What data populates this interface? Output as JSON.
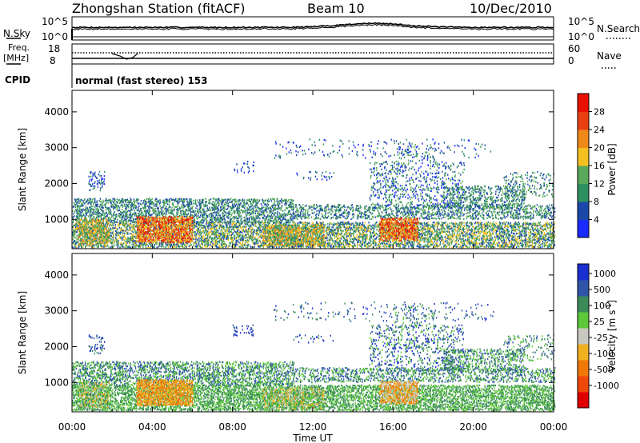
{
  "header": {
    "station": "Zhongshan Station (fitACF)",
    "beam": "Beam 10",
    "date": "10/Dec/2010"
  },
  "nsky_panel": {
    "left_label": "N.Sky",
    "right_label": "N.Search",
    "tick_top": "10^5",
    "tick_bottom": "10^0",
    "right_tick_top": "10^5",
    "right_tick_bottom": "10^0"
  },
  "freq_panel": {
    "left_label_1": "Freq.",
    "left_label_2": "[MHz]",
    "tick_top": "18",
    "tick_bottom": "8",
    "right_label": "Nave",
    "right_tick_top": "60",
    "right_tick_bottom": "0"
  },
  "cpid_panel": {
    "left_label": "CPID",
    "text": "normal (fast stereo) 153"
  },
  "colors": {
    "power": [
      "#1a2bff",
      "#1b48a8",
      "#2e8f60",
      "#5aa85a",
      "#f4c020",
      "#f08818",
      "#e84010",
      "#e81000"
    ],
    "velocity": [
      "#1a2fd0",
      "#2e55a8",
      "#3b8a5a",
      "#5cc83a",
      "#c8c8c0",
      "#f0b020",
      "#f07808",
      "#f04808",
      "#e00000"
    ]
  },
  "chart_data": [
    {
      "type": "heatmap",
      "name": "power",
      "ylabel": "Slant Range [km]",
      "ylim": [
        180,
        4600
      ],
      "yticks": [
        "1000",
        "2000",
        "3000",
        "4000"
      ],
      "ytick_values": [
        1000,
        2000,
        3000,
        4000
      ],
      "xlim": [
        0,
        24
      ],
      "colorbar": {
        "label": "Power [dB]",
        "ticks": [
          "4",
          "8",
          "12",
          "16",
          "20",
          "24",
          "28"
        ],
        "range": [
          0,
          32
        ]
      }
    },
    {
      "type": "heatmap",
      "name": "velocity",
      "ylabel": "Slant Range [km]",
      "ylim": [
        180,
        4600
      ],
      "yticks": [
        "1000",
        "2000",
        "3000",
        "4000"
      ],
      "ytick_values": [
        1000,
        2000,
        3000,
        4000
      ],
      "xlim": [
        0,
        24
      ],
      "xlabel": "Time UT",
      "xticks": [
        "00:00",
        "04:00",
        "08:00",
        "12:00",
        "16:00",
        "20:00",
        "00:00"
      ],
      "xtick_values": [
        0,
        4,
        8,
        12,
        16,
        20,
        24
      ],
      "colorbar": {
        "label": "Velocity [m s",
        "label_sup": "-1",
        "label_close": "]",
        "ticks": [
          "1000",
          "500",
          "100",
          "25",
          "-25",
          "-100",
          "-500",
          "-1000"
        ]
      }
    }
  ]
}
